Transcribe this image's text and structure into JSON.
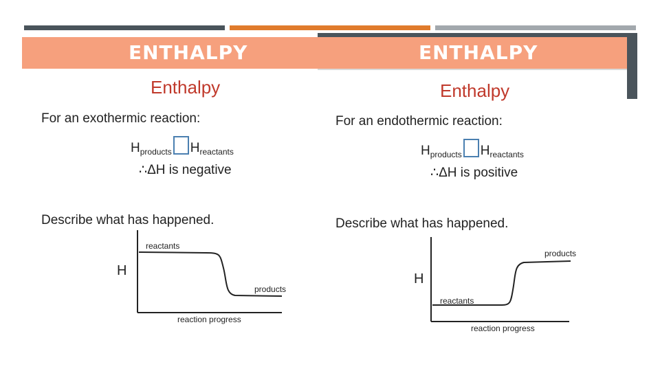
{
  "left_slide": {
    "banner_title": "ENTHALPY",
    "subtitle": "Enthalpy",
    "intro": "For an exothermic reaction:",
    "equation": {
      "h1": "H",
      "h1_sub": "products",
      "h2": "H",
      "h2_sub": "reactants"
    },
    "result": "∴ΔH is negative",
    "prompt": "Describe what has happened.",
    "graph": {
      "y_label": "H",
      "x_label": "reaction progress",
      "start_label": "reactants",
      "end_label": "products"
    }
  },
  "right_slide": {
    "banner_title": "ENTHALPY",
    "subtitle": "Enthalpy",
    "intro": "For an endothermic reaction:",
    "equation": {
      "h1": "H",
      "h1_sub": "products",
      "h2": "H",
      "h2_sub": "reactants"
    },
    "result": "∴ΔH is positive",
    "prompt": "Describe what has happened.",
    "graph": {
      "y_label": "H",
      "x_label": "reaction progress",
      "start_label": "reactants",
      "end_label": "products"
    }
  },
  "colors": {
    "banner": "#f6a07d",
    "subtitle": "#c0392b",
    "box": "#4a7fb0",
    "bar_dark": "#4a545b",
    "bar_orange": "#e07b2c",
    "bar_grey": "#a2a8ad"
  }
}
